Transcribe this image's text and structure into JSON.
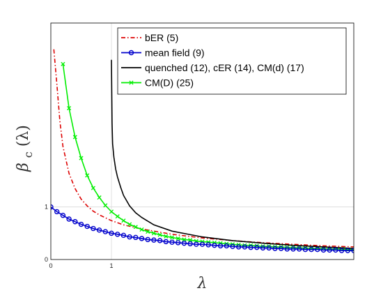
{
  "chart_data": {
    "type": "line",
    "xlabel": "λ",
    "ylabel_main": "β",
    "ylabel_sub": "c",
    "ylabel_arg": "(λ)",
    "xlim": [
      0,
      5
    ],
    "ylim": [
      0,
      4.5
    ],
    "x_ticks": [
      0,
      1
    ],
    "x_tick_labels": [
      "0",
      "1"
    ],
    "y_ticks": [
      0,
      1
    ],
    "y_tick_labels": [
      "0",
      "1"
    ],
    "grid": true,
    "legend_position": "top-right",
    "series": [
      {
        "name": "bER (5)",
        "color": "#dd0000",
        "style": "dash-dot",
        "marker": "none",
        "x": [
          0.05,
          0.1,
          0.15,
          0.2,
          0.3,
          0.4,
          0.5,
          0.6,
          0.7,
          0.8,
          1.0,
          1.2,
          1.5,
          2.0,
          2.5,
          3.0,
          3.5,
          4.0,
          4.5,
          5.0
        ],
        "y": [
          4.0,
          3.33,
          2.63,
          2.15,
          1.64,
          1.35,
          1.15,
          1.02,
          0.92,
          0.85,
          0.74,
          0.66,
          0.58,
          0.48,
          0.41,
          0.36,
          0.32,
          0.29,
          0.26,
          0.24
        ]
      },
      {
        "name": "mean field (9)",
        "color": "#0000cc",
        "style": "solid",
        "marker": "circle",
        "x": [
          0.0,
          0.1,
          0.2,
          0.3,
          0.4,
          0.5,
          0.6,
          0.7,
          0.8,
          0.9,
          1.0,
          1.1,
          1.2,
          1.3,
          1.4,
          1.5,
          1.6,
          1.7,
          1.8,
          1.9,
          2.0,
          2.1,
          2.2,
          2.3,
          2.4,
          2.5,
          2.6,
          2.7,
          2.8,
          2.9,
          3.0,
          3.1,
          3.2,
          3.3,
          3.4,
          3.5,
          3.6,
          3.7,
          3.8,
          3.9,
          4.0,
          4.1,
          4.2,
          4.3,
          4.4,
          4.5,
          4.6,
          4.7,
          4.8,
          4.9,
          5.0
        ],
        "y": [
          1.0,
          0.91,
          0.84,
          0.77,
          0.72,
          0.67,
          0.63,
          0.59,
          0.56,
          0.53,
          0.5,
          0.48,
          0.46,
          0.43,
          0.42,
          0.4,
          0.38,
          0.37,
          0.36,
          0.34,
          0.33,
          0.32,
          0.31,
          0.3,
          0.29,
          0.29,
          0.28,
          0.27,
          0.26,
          0.26,
          0.25,
          0.24,
          0.24,
          0.23,
          0.23,
          0.22,
          0.22,
          0.21,
          0.21,
          0.2,
          0.2,
          0.2,
          0.19,
          0.19,
          0.19,
          0.18,
          0.18,
          0.18,
          0.17,
          0.17,
          0.17
        ]
      },
      {
        "name": "quenched (12), cER (14), CM(d) (17)",
        "color": "#000000",
        "style": "solid",
        "marker": "none",
        "x": [
          1.0,
          1.01,
          1.02,
          1.04,
          1.07,
          1.1,
          1.15,
          1.2,
          1.3,
          1.4,
          1.5,
          1.7,
          2.0,
          2.5,
          3.0,
          3.5,
          4.0,
          4.5,
          5.0
        ],
        "y": [
          3.8,
          2.6,
          2.2,
          1.95,
          1.72,
          1.57,
          1.38,
          1.22,
          1.02,
          0.89,
          0.8,
          0.66,
          0.54,
          0.43,
          0.36,
          0.31,
          0.27,
          0.24,
          0.21
        ]
      },
      {
        "name": "CM(D) (25)",
        "color": "#00ee00",
        "style": "solid",
        "marker": "x",
        "x": [
          0.2,
          0.3,
          0.4,
          0.5,
          0.6,
          0.7,
          0.8,
          0.9,
          1.0,
          1.1,
          1.2,
          1.3,
          1.4,
          1.5,
          1.6,
          1.7,
          1.8,
          1.9,
          2.0,
          2.1,
          2.2,
          2.3,
          2.4,
          2.5,
          2.6,
          2.7,
          2.8,
          2.9,
          3.0,
          3.1,
          3.2,
          3.3,
          3.4,
          3.5,
          3.6,
          3.7,
          3.8,
          3.9,
          4.0,
          4.1,
          4.2,
          4.3,
          4.4,
          4.5,
          4.6,
          4.7,
          4.8,
          4.9,
          5.0
        ],
        "y": [
          3.72,
          2.88,
          2.33,
          1.93,
          1.6,
          1.36,
          1.18,
          1.03,
          0.91,
          0.82,
          0.74,
          0.67,
          0.62,
          0.57,
          0.53,
          0.5,
          0.47,
          0.44,
          0.42,
          0.4,
          0.38,
          0.37,
          0.35,
          0.34,
          0.33,
          0.32,
          0.31,
          0.3,
          0.29,
          0.28,
          0.27,
          0.27,
          0.26,
          0.25,
          0.25,
          0.24,
          0.24,
          0.23,
          0.23,
          0.22,
          0.22,
          0.21,
          0.21,
          0.21,
          0.2,
          0.2,
          0.2,
          0.19,
          0.19
        ]
      }
    ]
  }
}
